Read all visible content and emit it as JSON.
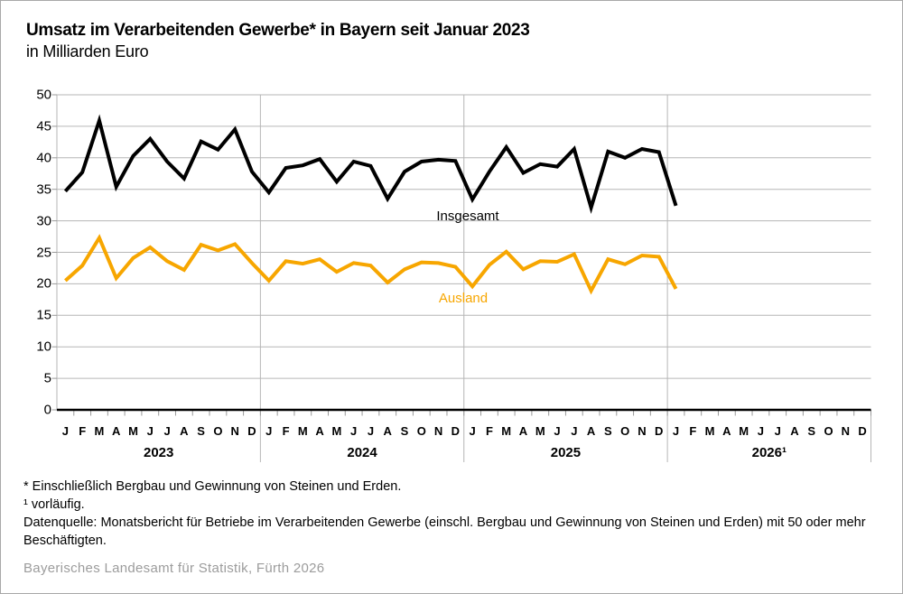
{
  "chart_data": {
    "type": "line",
    "title": "Umsatz im Verarbeitenden Gewerbe* in Bayern seit Januar 2023",
    "subtitle": "in Milliarden Euro",
    "ylim": [
      0,
      50
    ],
    "y_ticks": [
      0,
      5,
      10,
      15,
      20,
      25,
      30,
      35,
      40,
      45,
      50
    ],
    "grid": "on",
    "legend_position": "inline-labels",
    "month_letters": [
      "J",
      "F",
      "M",
      "A",
      "M",
      "J",
      "J",
      "A",
      "S",
      "O",
      "N",
      "D"
    ],
    "years": [
      "2023",
      "2024",
      "2025",
      "2026¹"
    ],
    "months_shown_total": 48,
    "x_start": "Januar 2023",
    "x_end_of_data": "Januar 2026",
    "series": [
      {
        "name": "Insgesamt",
        "color": "#000000",
        "values": [
          34.7,
          37.7,
          45.9,
          35.4,
          40.3,
          43.0,
          39.4,
          36.7,
          42.6,
          41.3,
          44.5,
          37.8,
          34.5,
          38.4,
          38.8,
          39.8,
          36.2,
          39.4,
          38.7,
          33.5,
          37.8,
          39.4,
          39.7,
          39.5,
          33.4,
          37.8,
          41.7,
          37.6,
          39.0,
          38.6,
          41.4,
          32.1,
          41.0,
          40.0,
          41.4,
          40.9,
          32.4
        ]
      },
      {
        "name": "Ausland",
        "color": "#f7a600",
        "values": [
          20.5,
          22.9,
          27.3,
          20.9,
          24.1,
          25.8,
          23.6,
          22.2,
          26.2,
          25.3,
          26.3,
          23.3,
          20.5,
          23.6,
          23.2,
          23.9,
          21.9,
          23.3,
          22.9,
          20.2,
          22.3,
          23.4,
          23.3,
          22.7,
          19.6,
          23.0,
          25.1,
          22.3,
          23.6,
          23.5,
          24.7,
          18.9,
          23.9,
          23.1,
          24.5,
          24.3,
          19.2
        ]
      }
    ],
    "colors": {
      "grid": "#b6b6b6",
      "axis_baseline": "#000000",
      "tick": "#999999",
      "accent_orange": "#f7a600"
    }
  },
  "footnotes": {
    "line1": "* Einschließlich Bergbau und Gewinnung von Steinen und Erden.",
    "line2": "¹ vorläufig.",
    "line3": "Datenquelle: Monatsbericht für Betriebe im Verarbeitenden Gewerbe (einschl. Bergbau und Gewinnung von Steinen und Erden) mit 50 oder mehr Beschäftigten."
  },
  "source": "Bayerisches Landesamt für Statistik, Fürth 2026"
}
